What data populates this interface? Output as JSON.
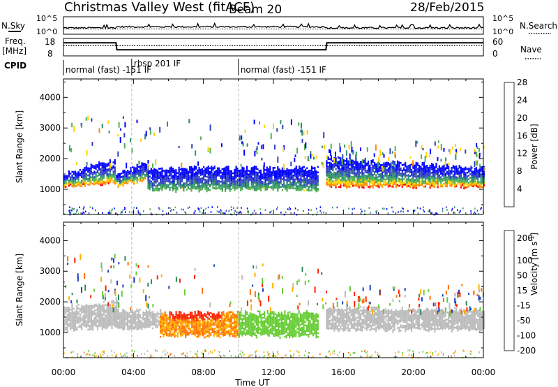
{
  "header": {
    "station": "Christmas Valley West (fitACF)",
    "beam": "Beam 20",
    "date": "28/Feb/2015"
  },
  "top_panels": {
    "nsky_label": "N.Sky",
    "nsky_ticks": [
      "10^5",
      "10^0"
    ],
    "nsearch_label": "N.Search",
    "nsearch_ticks": [
      "10^5",
      "10^0"
    ],
    "freq_label": "Freq.",
    "freq_unit": "[MHz]",
    "freq_ticks": [
      "18",
      "8"
    ],
    "nave_label": "Nave",
    "nave_ticks": [
      "60",
      "0"
    ],
    "cpid_label": "CPID",
    "cpid_segments": [
      {
        "label": "normal (fast) -151 IF",
        "start": 0.0,
        "end": 3.9
      },
      {
        "label": "rbsp 201 IF",
        "start": 3.9,
        "end": 10.0
      },
      {
        "label": "normal (fast) -151 IF",
        "start": 10.0,
        "end": 24.0
      }
    ],
    "freq_series": [
      {
        "t": 0,
        "v": 15.5
      },
      {
        "t": 3.0,
        "v": 15.5
      },
      {
        "t": 3.05,
        "v": 11.5
      },
      {
        "t": 15.0,
        "v": 11.5
      },
      {
        "t": 15.05,
        "v": 15.5
      },
      {
        "t": 24,
        "v": 15.5
      }
    ],
    "nave_series": [
      {
        "t": 0,
        "v": 35
      },
      {
        "t": 24,
        "v": 35
      }
    ]
  },
  "chart_data": [
    {
      "type": "heatmap",
      "panel": "power",
      "title": "",
      "xlabel": "",
      "ylabel": "Slant Range [km]",
      "yticks": [
        "1000",
        "2000",
        "3000",
        "4000"
      ],
      "ylim": [
        180,
        4600
      ],
      "xlim": [
        0,
        24
      ],
      "colorbar_label": "Power [dB]",
      "colorbar_ticks": [
        "4",
        "8",
        "12",
        "16",
        "20",
        "24",
        "28"
      ],
      "colorbar_colors": [
        "#0000ff",
        "#3040c0",
        "#2f8f6f",
        "#50b050",
        "#ffd000",
        "#ff8c00",
        "#ff0000"
      ],
      "bands": [
        {
          "t0": 0.0,
          "t1": 2.9,
          "r_low": [
            1100,
            1200
          ],
          "r_high": [
            1500,
            2000
          ],
          "peak": 28
        },
        {
          "t0": 3.0,
          "t1": 4.8,
          "r_low": [
            1150,
            1300
          ],
          "r_high": [
            1500,
            1900
          ],
          "peak": 24
        },
        {
          "t0": 4.8,
          "t1": 14.5,
          "r_low": [
            1000,
            1000
          ],
          "r_high": [
            1700,
            1700
          ],
          "peak": 16
        },
        {
          "t0": 15.0,
          "t1": 24.0,
          "r_low": [
            1100,
            1100
          ],
          "r_high": [
            2000,
            1700
          ],
          "peak": 28
        }
      ]
    },
    {
      "type": "heatmap",
      "panel": "velocity",
      "title": "",
      "xlabel": "Time UT",
      "ylabel": "Slant Range [km]",
      "yticks": [
        "1000",
        "2000",
        "3000",
        "4000"
      ],
      "ylim": [
        180,
        4600
      ],
      "xlim": [
        0,
        24
      ],
      "xticks": [
        "00:00",
        "04:00",
        "08:00",
        "12:00",
        "16:00",
        "20:00",
        "00:00"
      ],
      "colorbar_label": "Velocity [m s",
      "colorbar_unit_exponent": "-1",
      "colorbar_unit_close": "]",
      "colorbar_ticks": [
        "200",
        "100",
        "50",
        "15",
        "-15",
        "-50",
        "-100",
        "-200"
      ],
      "colorbar_colors": [
        "#2040c0",
        "#2e8b57",
        "#66cc33",
        "#bbbbbb",
        "#bbbbbb",
        "#ffb000",
        "#ff7000",
        "#ff2000"
      ],
      "bands": [
        {
          "t0": 0.0,
          "t1": 3.0,
          "r_low": [
            1100,
            1200
          ],
          "r_high": [
            1800,
            2000
          ],
          "v": 0
        },
        {
          "t0": 3.0,
          "t1": 5.5,
          "r_low": [
            1100,
            1200
          ],
          "r_high": [
            1700,
            1700
          ],
          "v": 0
        },
        {
          "t0": 5.5,
          "t1": 10.0,
          "r_low": [
            900,
            900
          ],
          "r_high": [
            1650,
            1650
          ],
          "v": -50
        },
        {
          "t0": 10.0,
          "t1": 14.5,
          "r_low": [
            900,
            900
          ],
          "r_high": [
            1650,
            1650
          ],
          "v": 50
        },
        {
          "t0": 15.0,
          "t1": 24.0,
          "r_low": [
            1100,
            1100
          ],
          "r_high": [
            1800,
            1750
          ],
          "v": 0
        }
      ]
    }
  ]
}
